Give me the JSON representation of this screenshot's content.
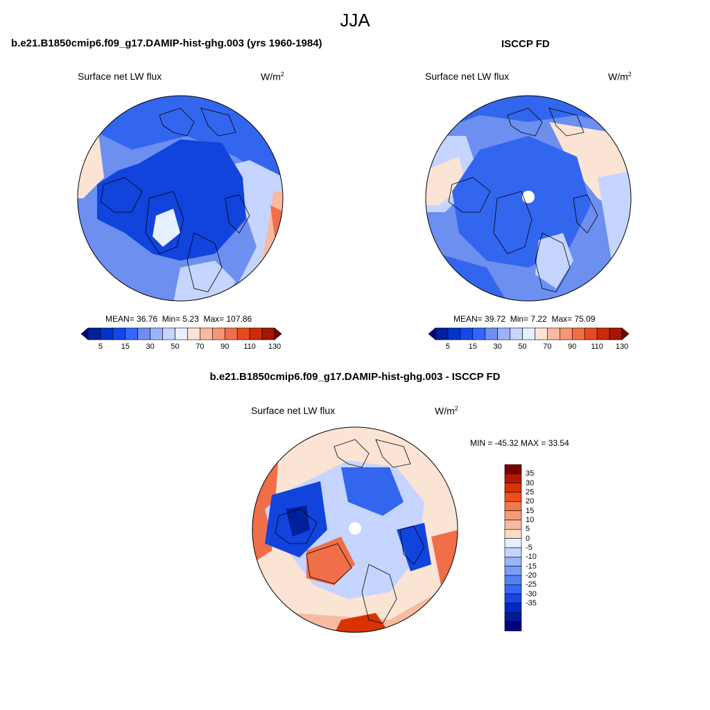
{
  "figure": {
    "season": "JJA"
  },
  "panels": [
    {
      "id": "model",
      "title": "b.e21.B1850cmip6.f09_g17.DAMIP-hist-ghg.003 (yrs 1960-1984)",
      "variable": "Surface net LW flux",
      "units_base": "W/m",
      "units_exp": "2",
      "stats": {
        "mean_label": "MEAN=",
        "mean": "36.76",
        "min_label": "Min=",
        "min": "5.23",
        "max_label": "Max=",
        "max": "107.86"
      }
    },
    {
      "id": "obs",
      "title": "ISCCP FD",
      "variable": "Surface net LW flux",
      "units_base": "W/m",
      "units_exp": "2",
      "stats": {
        "mean_label": "MEAN=",
        "mean": "39.72",
        "min_label": "Min=",
        "min": "7.22",
        "max_label": "Max=",
        "max": "75.09"
      }
    },
    {
      "id": "diff",
      "title": "b.e21.B1850cmip6.f09_g17.DAMIP-hist-ghg.003 - ISCCP FD",
      "variable": "Surface net LW flux",
      "units_base": "W/m",
      "units_exp": "2",
      "stats_text": "MIN = -45.32 MAX =  33.54"
    }
  ],
  "colorbar_abs": {
    "colors": [
      "#00007f",
      "#00209a",
      "#0033cc",
      "#1148e8",
      "#3366ff",
      "#6c8ff0",
      "#99b3ff",
      "#c5d5ff",
      "#e6f0ff",
      "#fce4d4",
      "#f7bba0",
      "#f59775",
      "#f06e48",
      "#e84a20",
      "#cc2a0a",
      "#a61600",
      "#7a0000"
    ],
    "tick_labels": [
      "5",
      "15",
      "30",
      "50",
      "70",
      "90",
      "110",
      "130"
    ]
  },
  "colorbar_diff": {
    "colors": [
      "#7a0000",
      "#b31a00",
      "#d93300",
      "#f04d1a",
      "#f5774d",
      "#f7997a",
      "#f7bba0",
      "#fcdcc8",
      "#e6f0ff",
      "#c5d5ff",
      "#99b3ff",
      "#7a9cf7",
      "#5580f2",
      "#3366ff",
      "#1a44e6",
      "#0028c2",
      "#001a99",
      "#00007f"
    ],
    "tick_labels": [
      "35",
      "30",
      "25",
      "20",
      "15",
      "10",
      "5",
      "0",
      "-5",
      "-10",
      "-15",
      "-20",
      "-25",
      "-30",
      "-35"
    ]
  },
  "map_colors": {
    "deep_blue": "#1144dd",
    "mid_blue": "#3366ee",
    "light_blue": "#6c8ff0",
    "pale_blue": "#c5d5ff",
    "very_pale": "#e6f0ff",
    "peach": "#fce4d4",
    "salmon": "#f7bba0",
    "orange": "#f06e48",
    "red": "#d93300",
    "navy": "#00209a"
  }
}
